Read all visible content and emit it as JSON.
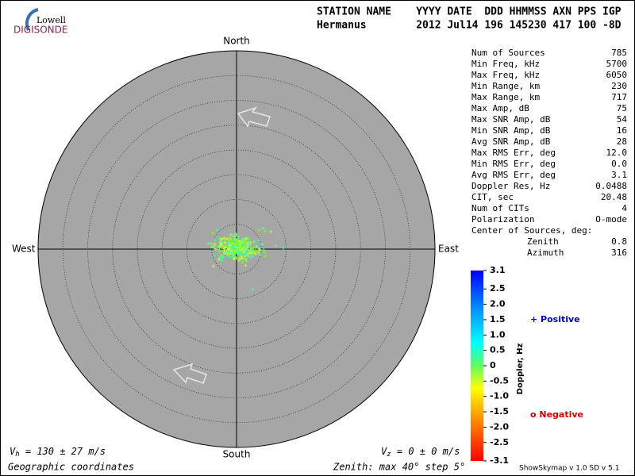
{
  "logo": {
    "top": "Lowell",
    "bottom": "DIGISONDE"
  },
  "header": {
    "line1": "STATION NAME    YYYY DATE  DDD HHMMSS AXN PPS IGP",
    "line2": "Hermanus        2012 Jul14 196 145230 417 100 -8D"
  },
  "directions": {
    "north": "North",
    "south": "South",
    "east": "East",
    "west": "West"
  },
  "stats": [
    [
      "Num of Sources",
      "785"
    ],
    [
      "Min Freq, kHz",
      "5700"
    ],
    [
      "Max Freq, kHz",
      "6050"
    ],
    [
      "Min Range, km",
      "230"
    ],
    [
      "Max Range, km",
      "717"
    ],
    [
      "Max Amp, dB",
      "75"
    ],
    [
      "Max SNR Amp, dB",
      "54"
    ],
    [
      "Min SNR Amp, dB",
      "16"
    ],
    [
      "Avg SNR Amp, dB",
      "28"
    ],
    [
      "Max RMS Err, deg",
      "12.0"
    ],
    [
      "Min RMS Err, deg",
      "0.0"
    ],
    [
      "Avg RMS Err, deg",
      "3.1"
    ],
    [
      "Doppler Res, Hz",
      "0.0488"
    ],
    [
      "CIT, sec",
      "20.48"
    ],
    [
      "Num of CITs",
      "4"
    ],
    [
      "Polarization",
      "O-mode"
    ]
  ],
  "center": {
    "title": "Center of Sources, deg:",
    "zenith_label": "Zenith",
    "zenith": "0.8",
    "azimuth_label": "Azimuth",
    "azimuth": "316"
  },
  "colorbar": {
    "label": "Doppler, Hz",
    "lim": [
      -3.1,
      3.1
    ],
    "ticks": [
      3.1,
      2.5,
      {
        "value": 2,
        "label": "2.0"
      },
      1.5,
      {
        "value": 1,
        "label": "1.0"
      },
      0.5,
      0,
      -0.5,
      {
        "value": -1,
        "label": "-1.0"
      },
      -1.5,
      {
        "value": -2,
        "label": "-2.0"
      },
      -2.5,
      -3.1
    ]
  },
  "legend": {
    "positive": "+ Positive",
    "negative": "o Negative"
  },
  "footer": {
    "vh_symbol": "V",
    "vh_sub": "h",
    "vh_text": " = 130 ± 27 m/s",
    "vz_symbol": "V",
    "vz_sub": "z",
    "vz_text": " = 0 ± 0 m/s",
    "coords": "Geographic coordinates",
    "zenith": "Zenith: max 40°  step 5°",
    "version": "ShowSkymap v 1.0   SD v 5.1"
  }
}
